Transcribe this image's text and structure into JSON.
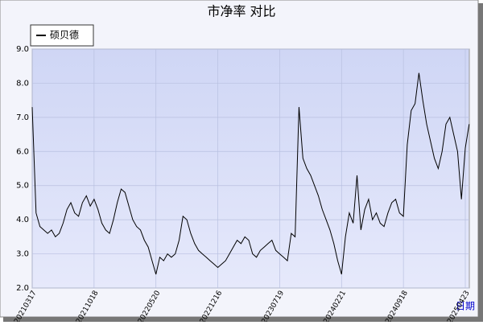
{
  "chart_data": {
    "type": "line",
    "title": "市净率  对比",
    "x_label": "日期",
    "categories": [
      "20210317",
      null,
      null,
      null,
      null,
      null,
      null,
      null,
      null,
      null,
      null,
      null,
      null,
      null,
      null,
      null,
      "20211018",
      null,
      null,
      null,
      null,
      null,
      null,
      null,
      null,
      null,
      null,
      null,
      null,
      null,
      null,
      null,
      "20220520",
      null,
      null,
      null,
      null,
      null,
      null,
      null,
      null,
      null,
      null,
      null,
      null,
      null,
      null,
      null,
      "20221216",
      null,
      null,
      null,
      null,
      null,
      null,
      null,
      null,
      null,
      null,
      null,
      null,
      null,
      null,
      null,
      "20230719",
      null,
      null,
      null,
      null,
      null,
      null,
      null,
      null,
      null,
      null,
      null,
      null,
      null,
      null,
      null,
      "20240221",
      null,
      null,
      null,
      null,
      null,
      null,
      null,
      null,
      null,
      null,
      null,
      null,
      null,
      null,
      null,
      "20240918",
      null,
      null,
      null,
      null,
      null,
      null,
      null,
      null,
      null,
      null,
      null,
      null,
      null,
      null,
      null,
      "20250423",
      null
    ],
    "series": [
      {
        "name": "硕贝德",
        "color": "#000000",
        "values": [
          7.3,
          4.2,
          3.8,
          3.7,
          3.6,
          3.7,
          3.5,
          3.6,
          3.9,
          4.3,
          4.5,
          4.2,
          4.1,
          4.5,
          4.7,
          4.4,
          4.6,
          4.3,
          3.9,
          3.7,
          3.6,
          4.0,
          4.5,
          4.9,
          4.8,
          4.4,
          4.0,
          3.8,
          3.7,
          3.4,
          3.2,
          2.8,
          2.4,
          2.9,
          2.8,
          3.0,
          2.9,
          3.0,
          3.4,
          4.1,
          4.0,
          3.6,
          3.3,
          3.1,
          3.0,
          2.9,
          2.8,
          2.7,
          2.6,
          2.7,
          2.8,
          3.0,
          3.2,
          3.4,
          3.3,
          3.5,
          3.4,
          3.0,
          2.9,
          3.1,
          3.2,
          3.3,
          3.4,
          3.1,
          3.0,
          2.9,
          2.8,
          3.6,
          3.5,
          7.3,
          5.8,
          5.5,
          5.3,
          5.0,
          4.7,
          4.3,
          4.0,
          3.7,
          3.3,
          2.8,
          2.4,
          3.5,
          4.2,
          3.9,
          5.3,
          3.7,
          4.3,
          4.6,
          4.0,
          4.2,
          3.9,
          3.8,
          4.2,
          4.5,
          4.6,
          4.2,
          4.1,
          6.2,
          7.2,
          7.4,
          8.3,
          7.5,
          6.8,
          6.3,
          5.8,
          5.5,
          6.0,
          6.8,
          7.0,
          6.5,
          6.0,
          4.6,
          6.1,
          6.8
        ]
      }
    ],
    "ylim": [
      2,
      9
    ],
    "yticks": [
      {
        "value": 2,
        "label": "2.0"
      },
      {
        "value": 3,
        "label": "3.0"
      },
      {
        "value": 4,
        "label": "4.0"
      },
      {
        "value": 5,
        "label": "5.0"
      },
      {
        "value": 6,
        "label": "6.0"
      },
      {
        "value": 7,
        "label": "7.0"
      },
      {
        "value": 8,
        "label": "8.0"
      },
      {
        "value": 9,
        "label": "9.0"
      }
    ],
    "grid": true
  }
}
